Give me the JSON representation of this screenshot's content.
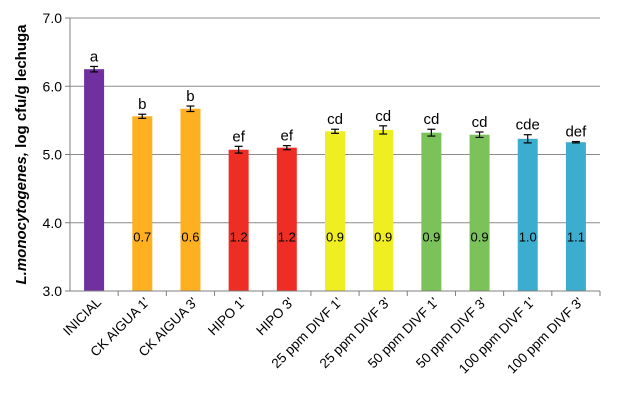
{
  "chart_data": {
    "type": "bar",
    "ylabel_italic": "L.monocytogenes,",
    "ylabel_rest": " log cfu/g lechuga",
    "ylim": [
      3.0,
      7.0
    ],
    "yticks": [
      "3.0",
      "4.0",
      "5.0",
      "6.0",
      "7.0"
    ],
    "ytick_values": [
      3.0,
      4.0,
      5.0,
      6.0,
      7.0
    ],
    "grid": true,
    "categories": [
      "INICIAL",
      "CK AIGUA 1'",
      "CK AIGUA 3'",
      "HIPO 1'",
      "HIPO 3'",
      "25 ppm DIVF 1'",
      "25 ppm DIVF 3'",
      "50 ppm DIVF 1'",
      "50 ppm DIVF 3'",
      "100 ppm DIVF 1'",
      "100 ppm DIVF 3'"
    ],
    "values": [
      6.25,
      5.56,
      5.67,
      5.07,
      5.1,
      5.34,
      5.36,
      5.32,
      5.29,
      5.23,
      5.18
    ],
    "errors": [
      0.04,
      0.03,
      0.04,
      0.05,
      0.03,
      0.03,
      0.06,
      0.05,
      0.04,
      0.06,
      0.01
    ],
    "significance_letters": [
      "a",
      "b",
      "b",
      "ef",
      "ef",
      "cd",
      "cd",
      "cd",
      "cd",
      "cde",
      "def"
    ],
    "reductions": [
      "",
      "0.7",
      "0.6",
      "1.2",
      "1.2",
      "0.9",
      "0.9",
      "0.9",
      "0.9",
      "1.0",
      "1.1"
    ],
    "reduction_label_y": 3.8,
    "colors": [
      "#7030A0",
      "#FFB020",
      "#FFB020",
      "#EE2E24",
      "#EE2E24",
      "#EEEE22",
      "#EEEE22",
      "#7CC25A",
      "#7CC25A",
      "#3BAED0",
      "#3BAED0"
    ]
  }
}
